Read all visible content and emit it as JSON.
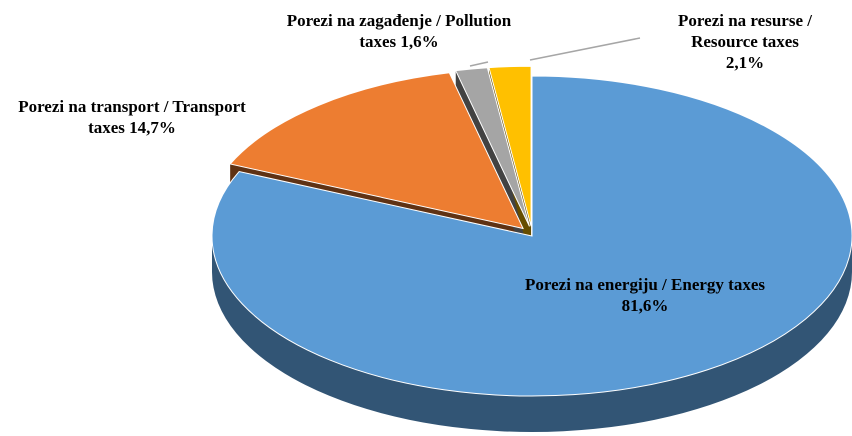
{
  "chart_data": {
    "type": "pie",
    "categories": [
      "Porezi na energiju / Energy taxes",
      "Porezi na transport / Transport taxes",
      "Porezi na zagađenje / Pollution taxes",
      "Porezi na resurse / Resource taxes"
    ],
    "values": [
      81.6,
      14.7,
      1.6,
      2.1
    ],
    "value_labels": [
      "81,6%",
      "14,7%",
      "1,6%",
      "2,1%"
    ],
    "colors": [
      "#5b9bd5",
      "#ed7d31",
      "#a5a5a5",
      "#ffc000"
    ]
  }
}
